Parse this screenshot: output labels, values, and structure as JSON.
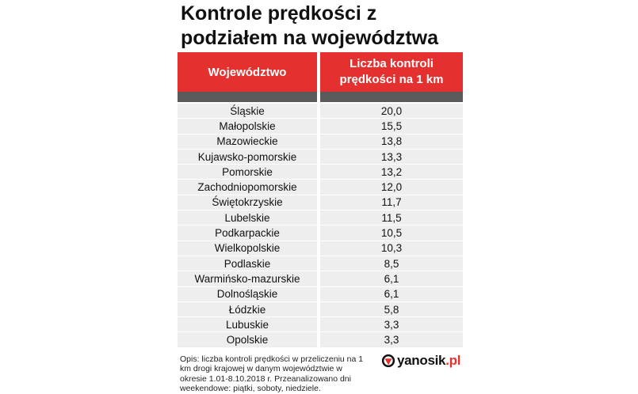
{
  "title": "Kontrole prędkości z podziałem na województwa",
  "table": {
    "headers": [
      "Województwo",
      "Liczba kontroli prędkości na 1 km"
    ],
    "rows": [
      [
        "Śląskie",
        "20,0"
      ],
      [
        "Małopolskie",
        "15,5"
      ],
      [
        "Mazowieckie",
        "13,8"
      ],
      [
        "Kujawsko-pomorskie",
        "13,3"
      ],
      [
        "Pomorskie",
        "13,2"
      ],
      [
        "Zachodniopomorskie",
        "12,0"
      ],
      [
        "Świętokrzyskie",
        "11,7"
      ],
      [
        "Lubelskie",
        "11,5"
      ],
      [
        "Podkarpackie",
        "10,5"
      ],
      [
        "Wielkopolskie",
        "10,3"
      ],
      [
        "Podlaskie",
        "8,5"
      ],
      [
        "Warmińsko-mazurskie",
        "6,1"
      ],
      [
        "Dolnośląskie",
        "6,1"
      ],
      [
        "Łódzkie",
        "5,8"
      ],
      [
        "Lubuskie",
        "3,3"
      ],
      [
        "Opolskie",
        "3,3"
      ]
    ]
  },
  "note": "Opis: liczba kontroli prędkości w przeliczeniu na 1 km drogi krajowej w danym województwie w okresie 1.01-8.10.2018 r. Przeanalizowano dni weekendowe: piątki, soboty, niedziele.",
  "logo": {
    "name": "yanosik",
    "dot": ".",
    "tld": "pl",
    "icon": "yanosik-logo-icon"
  },
  "colors": {
    "header_red": "#e4312f",
    "subheader_gray": "#5a5a5a",
    "row_bg": "#eeeeee"
  }
}
